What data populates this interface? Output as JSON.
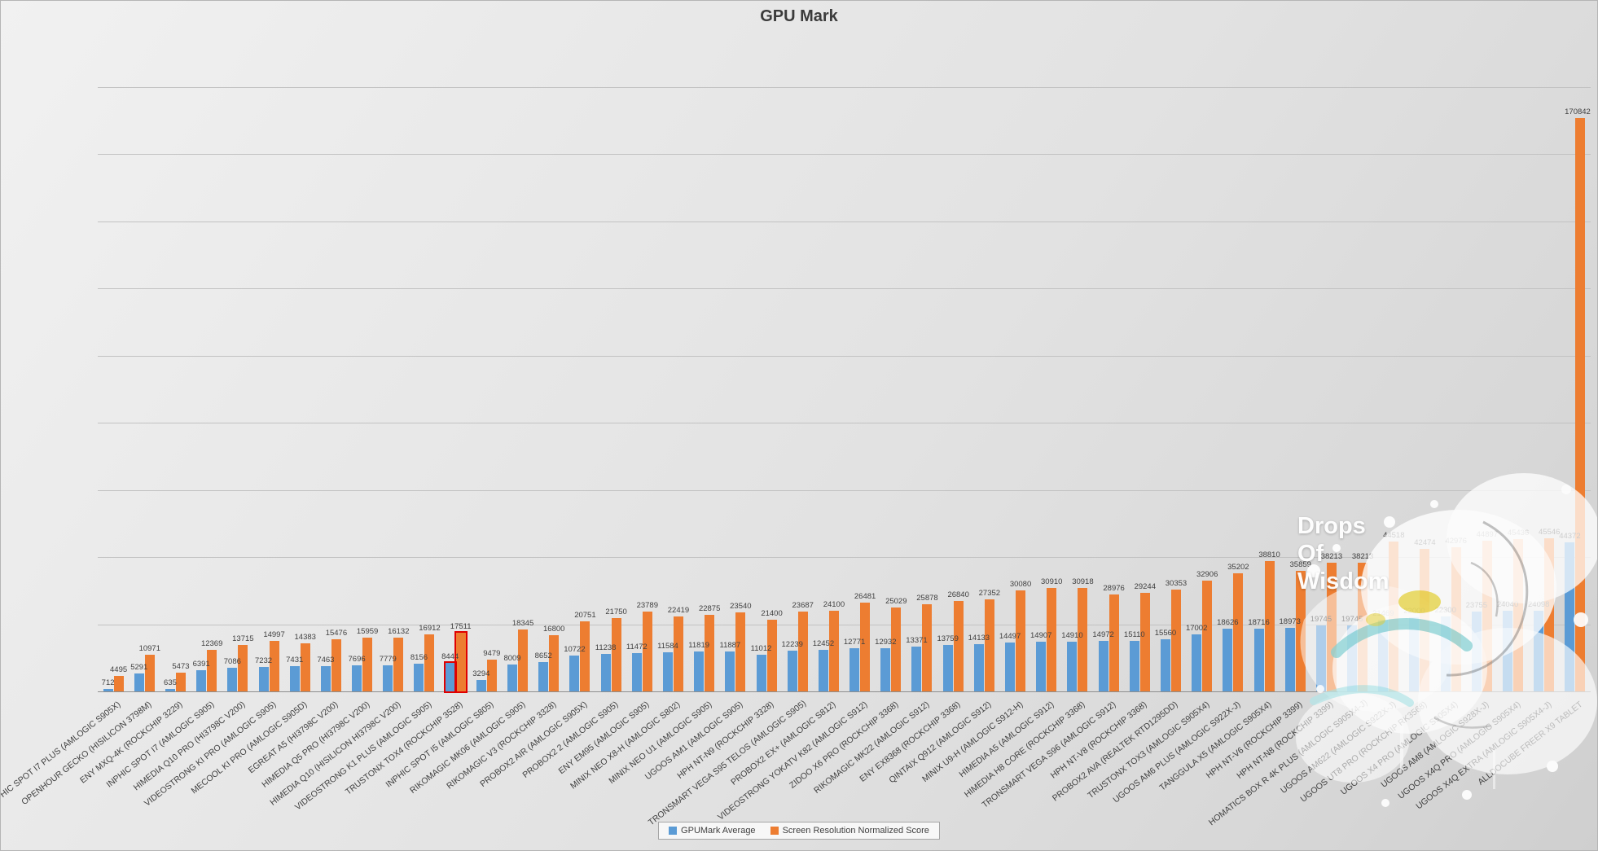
{
  "title": "GPU Mark",
  "legend": [
    {
      "label": "GPUMark Average",
      "color": "#5B9BD5"
    },
    {
      "label": "Screen Resolution Normalized Score",
      "color": "#ED7D31"
    }
  ],
  "watermark": {
    "lines": [
      "Drops",
      "Of",
      "Wisdom"
    ]
  },
  "colors": {
    "series_blue": "#5B9BD5",
    "series_orange": "#ED7D31",
    "highlight_red": "#e00000",
    "label_text": "#3f3f3f"
  },
  "chart_data": {
    "type": "bar",
    "title": "GPU Mark",
    "xlabel": "",
    "ylabel": "",
    "ylim": [
      0,
      180000
    ],
    "grid_step": 20000,
    "grid": true,
    "legend_position": "bottom",
    "value_labels": true,
    "highlight_index": 11,
    "highlight_category": "TRUSTONX TOX4 (ROCKCHIP 3528)",
    "categories": [
      "INPHIC SPOT I7 PLUS (AMLOGIC S905X)",
      "OPENHOUR GECKO (HISILICON 3798M)",
      "ENY MXQ-4K (ROCKCHIP 3229)",
      "INPHIC SPOT I7 (AMLOGIC S905)",
      "HIMEDIA Q10 PRO (HI3798C V200)",
      "VIDEOSTRONG KI PRO (AMLOGIC S905)",
      "MECOOL KI PRO (AMLOGIC S905D)",
      "EGREAT A5 (HI3798C V200)",
      "HIMEDIA Q5 PRO (HI3798C V200)",
      "HIMEDIA Q10 (HISILICON HI3798C V200)",
      "VIDEOSTRONG K1 PLUS (AMLOGIC S905)",
      "TRUSTONX TOX4 (ROCKCHIP 3528)",
      "INPHIC SPOT I5 (AMLOGIC S805)",
      "RIKOMAGIC MK06 (AMLOGIC S905)",
      "RIKOMAGIC V3 (ROCKCHIP 3328)",
      "PROBOX2 AIR (AMLOGIC S905X)",
      "PROBOX2 2 (AMLOGIC S905)",
      "ENY EM95 (AMLOGIC S905)",
      "MINIX NEO X8-H (AMLOGIC S802)",
      "MINIX NEO U1 (AMLOGIC S905)",
      "UGOOS AM1 (AMLOGIC S905)",
      "HPH NT-N9 (ROCKCHIP 3328)",
      "TRONSMART VEGA S95 TELOS (AMLOGIC S905)",
      "PROBOX2 EX+ (AMLOGIC S812)",
      "VIDEOSTRONG YOKATV K82 (AMLOGIC S912)",
      "ZIDOO X6 PRO (ROCKCHIP 3368)",
      "RIKOMAGIC MK22 (AMLOGIC S912)",
      "ENY EX8368 (ROCKCHIP 3368)",
      "QINTAIX Q912 (AMLOGIC S912)",
      "MINIX U9-H (AMLOGIC S912-H)",
      "HIMEDIA A5 (AMLOGIC S912)",
      "HIMEDIA H8 CORE (ROCKCHIP 3368)",
      "TRONSMART VEGA S96 (AMLOGIC S912)",
      "HPH NT-V8 (ROCKCHIP 3368)",
      "PROBOX2 AVA (REALTEK RTD1295DD)",
      "TRUSTONX TOX3 (AMLOGIC S905X4)",
      "UGOOS AM6 PLUS (AMLOGIC S922X-J)",
      "TANGGULA X5 (AMLOGIC S905X4)",
      "HPH NT-V6 (ROCKCHIP 3399)",
      "HPH NT-N8 (ROCKCHIP 3399)",
      "HOMATICS BOX R 4K PLUS (AMLOGIC S905X4-J)",
      "UGOOS AM622 (AMLOGIC S922X-J)",
      "UGOOS UT8 PRO (ROCKCHIP RK3568)",
      "UGOOS X4 PRO (AMLOGIC S905X4)",
      "UGOOS AM8 (AMLOGIC S928X-J)",
      "UGOOS X4Q PRO (AMLOGIC S905X4)",
      "UGOOS X4Q EXTRA (AMLOGIC S905X4-J)",
      "ALLDOCUBE FREER X9 TABLET"
    ],
    "series": [
      {
        "name": "GPUMark Average",
        "color": "#5B9BD5",
        "values": [
          712,
          5291,
          635,
          6391,
          7086,
          7232,
          7431,
          7463,
          7696,
          7779,
          8156,
          8444,
          3294,
          8009,
          8652,
          10722,
          11238,
          11472,
          11584,
          11819,
          11887,
          11012,
          12239,
          12452,
          12771,
          12932,
          13371,
          13759,
          14133,
          14497,
          14907,
          14910,
          14972,
          15110,
          15560,
          17002,
          18626,
          18716,
          18973,
          19745,
          19745,
          21469,
          22000,
          22300,
          23755,
          24040,
          24098,
          44372
        ]
      },
      {
        "name": "Screen Resolution Normalized Score",
        "color": "#ED7D31",
        "values": [
          4495,
          10971,
          5473,
          12369,
          13715,
          14997,
          14383,
          15476,
          15959,
          16132,
          16912,
          17511,
          9479,
          18345,
          16800,
          20751,
          21750,
          23789,
          22419,
          22875,
          23540,
          21400,
          23687,
          24100,
          26481,
          25029,
          25878,
          26840,
          27352,
          30080,
          30910,
          30918,
          28976,
          29244,
          30353,
          32906,
          35202,
          38810,
          35859,
          38213,
          38213,
          44518,
          42474,
          42976,
          44897,
          45436,
          45546,
          170842
        ]
      }
    ]
  }
}
